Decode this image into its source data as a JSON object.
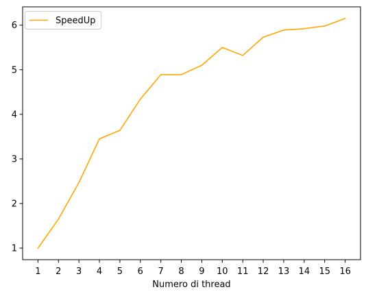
{
  "chart_data": {
    "type": "line",
    "title": "",
    "xlabel": "Numero di thread",
    "ylabel": "",
    "x": [
      1,
      2,
      3,
      4,
      5,
      6,
      7,
      8,
      9,
      10,
      11,
      12,
      13,
      14,
      15,
      16
    ],
    "x_ticks": [
      "1",
      "2",
      "3",
      "4",
      "5",
      "6",
      "7",
      "8",
      "9",
      "10",
      "11",
      "12",
      "13",
      "14",
      "15",
      "16"
    ],
    "y_ticks": [
      1,
      2,
      3,
      4,
      5,
      6
    ],
    "xlim": [
      0.25,
      16.75
    ],
    "ylim": [
      0.74,
      6.41
    ],
    "grid": false,
    "legend_position": "top-left",
    "series": [
      {
        "name": "SpeedUp",
        "color": "#ffa500",
        "values": [
          1.0,
          1.65,
          2.47,
          3.45,
          3.64,
          4.34,
          4.89,
          4.89,
          5.1,
          5.5,
          5.32,
          5.73,
          5.89,
          5.92,
          5.98,
          6.15
        ]
      }
    ]
  }
}
